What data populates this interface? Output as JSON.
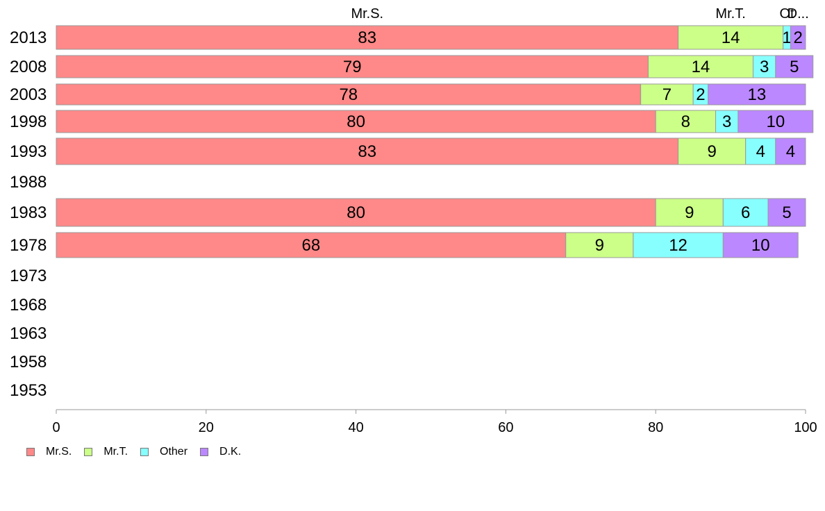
{
  "chart_data": {
    "type": "bar",
    "orientation": "horizontal",
    "stacked": true,
    "categories": [
      "2013",
      "2008",
      "2003",
      "1998",
      "1993",
      "1988",
      "1983",
      "1978",
      "1973",
      "1968",
      "1963",
      "1958",
      "1953"
    ],
    "series": [
      {
        "name": "Mr.S.",
        "color": "#ff8888",
        "values": [
          83,
          79,
          78,
          80,
          83,
          null,
          80,
          68,
          null,
          null,
          null,
          null,
          null
        ]
      },
      {
        "name": "Mr.T.",
        "color": "#ccff88",
        "values": [
          14,
          14,
          7,
          8,
          9,
          null,
          9,
          9,
          null,
          null,
          null,
          null,
          null
        ]
      },
      {
        "name": "Other",
        "color": "#88ffff",
        "values": [
          1,
          3,
          2,
          3,
          4,
          null,
          6,
          12,
          null,
          null,
          null,
          null,
          null
        ]
      },
      {
        "name": "D.K.",
        "color": "#bb88ff",
        "values": [
          2,
          5,
          13,
          10,
          4,
          null,
          5,
          10,
          null,
          null,
          null,
          null,
          null
        ]
      }
    ],
    "top_labels": [
      "Mr.S.",
      "Mr.T.",
      "Ot",
      "D..."
    ],
    "xlim": [
      0,
      100
    ],
    "xticks": [
      "0",
      "20",
      "40",
      "60",
      "80",
      "100"
    ],
    "xlabel": "",
    "ylabel": "",
    "legend": "bottom-left",
    "grid": false
  }
}
